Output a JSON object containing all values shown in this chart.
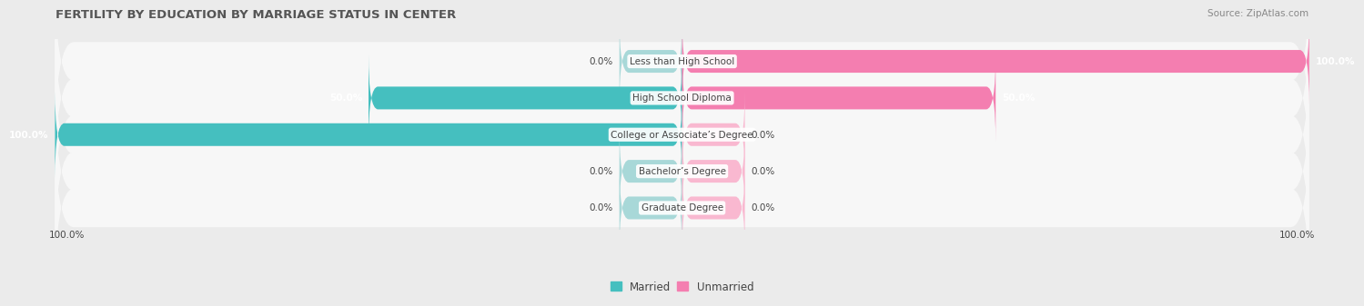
{
  "title": "FERTILITY BY EDUCATION BY MARRIAGE STATUS IN CENTER",
  "source": "Source: ZipAtlas.com",
  "categories": [
    "Less than High School",
    "High School Diploma",
    "College or Associate’s Degree",
    "Bachelor’s Degree",
    "Graduate Degree"
  ],
  "married": [
    0.0,
    50.0,
    100.0,
    0.0,
    0.0
  ],
  "unmarried": [
    100.0,
    50.0,
    0.0,
    0.0,
    0.0
  ],
  "married_color": "#45BFBF",
  "married_light_color": "#A8D8D8",
  "unmarried_color": "#F47EB0",
  "unmarried_light_color": "#F9B8D0",
  "bg_color": "#EBEBEB",
  "row_bg_color": "#F7F7F7",
  "title_fontsize": 9.5,
  "source_fontsize": 7.5,
  "label_fontsize": 7.5,
  "legend_fontsize": 8.5,
  "axis_label_fontsize": 7.5,
  "x_min": -100,
  "x_max": 100,
  "bar_height": 0.62,
  "label_color": "#444444",
  "zero_stub": 10
}
